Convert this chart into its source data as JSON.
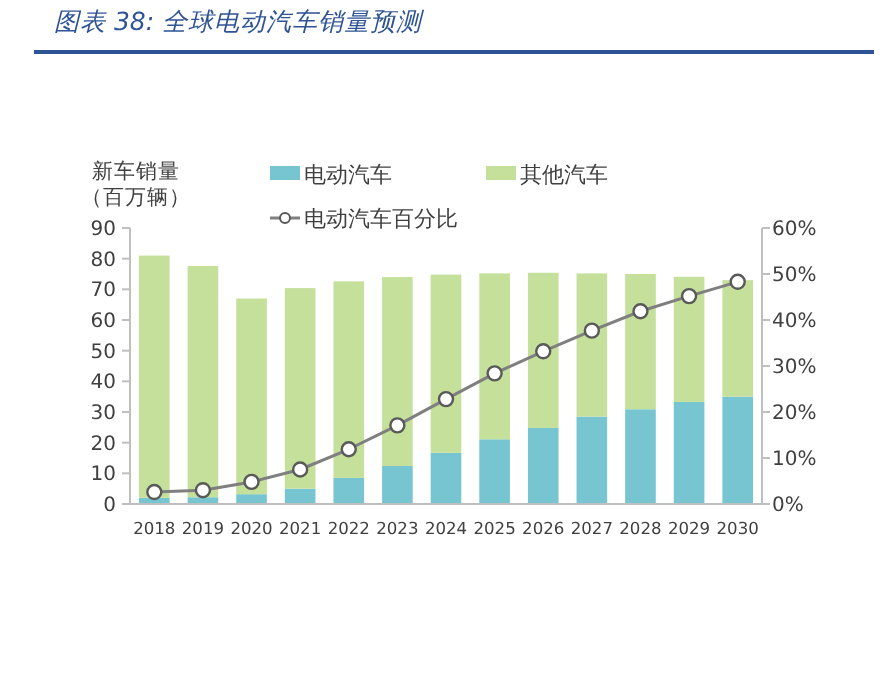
{
  "chart_data": {
    "type": "bar",
    "title": "图表 38: 全球电动汽车销量预测",
    "ylabel": "新车销量（百万辆）",
    "categories": [
      "2018",
      "2019",
      "2020",
      "2021",
      "2022",
      "2023",
      "2024",
      "2025",
      "2026",
      "2027",
      "2028",
      "2029",
      "2030"
    ],
    "stacked": true,
    "legend": "top",
    "marker": "circle",
    "series": [
      {
        "name": "电动汽车",
        "color": "#77c5d0",
        "values": [
          2.0,
          2.2,
          3.2,
          5.0,
          8.5,
          12.4,
          16.7,
          21.1,
          24.8,
          28.5,
          30.9,
          33.3,
          35.0
        ]
      },
      {
        "name": "其他汽车",
        "color": "#c5e09a",
        "values": [
          79.0,
          75.4,
          63.8,
          65.4,
          64.1,
          61.6,
          58.1,
          54.1,
          50.6,
          46.7,
          44.1,
          40.8,
          38.0
        ]
      },
      {
        "name": "电动汽车百分比",
        "type": "line",
        "axis": "y2",
        "color": "#7f7f7f",
        "values": [
          2.6,
          3.0,
          4.8,
          7.5,
          11.9,
          17.1,
          22.8,
          28.4,
          33.2,
          37.7,
          41.9,
          45.2,
          48.3
        ]
      }
    ],
    "ylim": [
      0,
      90
    ],
    "yticks": [
      0,
      10,
      20,
      30,
      40,
      50,
      60,
      70,
      80,
      90
    ],
    "y2lim": [
      0,
      60
    ],
    "y2ticks": [
      {
        "value": 0,
        "label": "0%"
      },
      {
        "value": 10,
        "label": "10%"
      },
      {
        "value": 20,
        "label": "20%"
      },
      {
        "value": 30,
        "label": "30%"
      },
      {
        "value": 40,
        "label": "40%"
      },
      {
        "value": 50,
        "label": "50%"
      },
      {
        "value": 60,
        "label": "60%"
      }
    ]
  }
}
